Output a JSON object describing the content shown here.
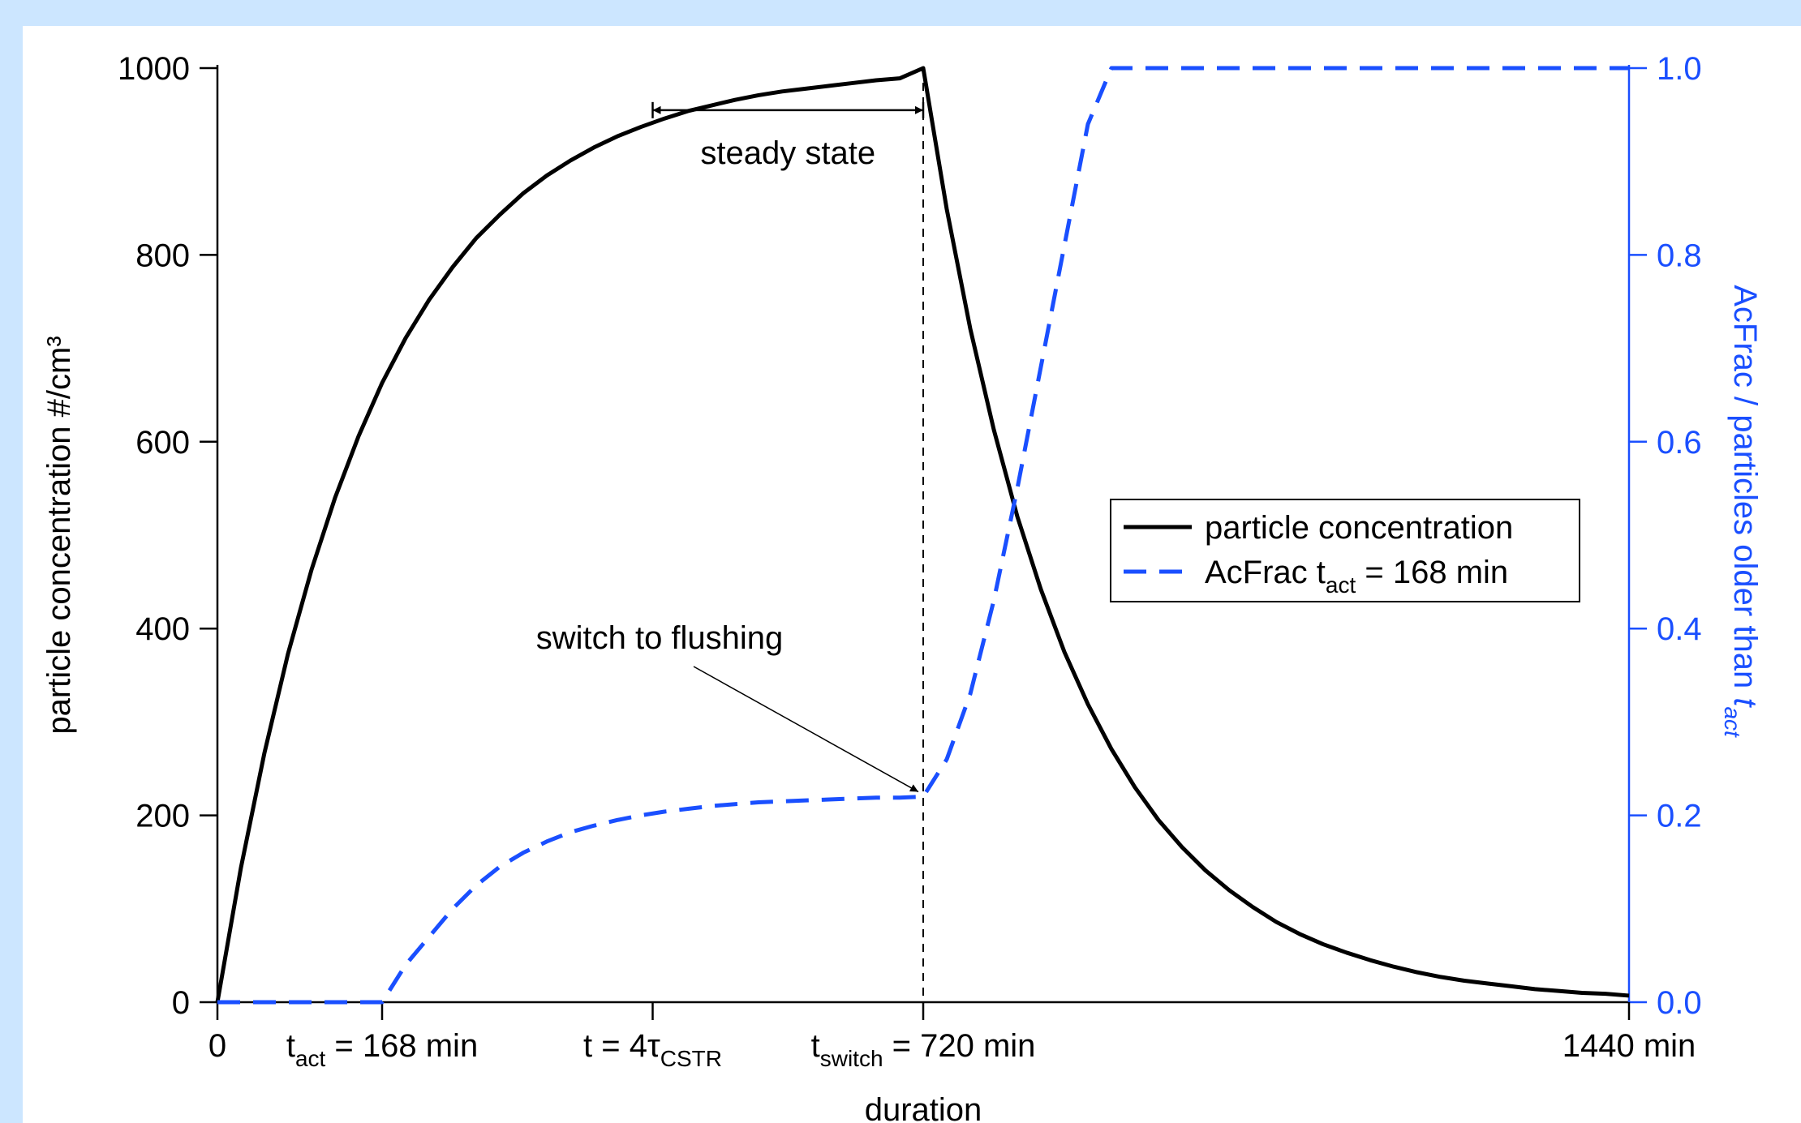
{
  "chart_data": {
    "type": "line",
    "x": [
      0,
      24,
      48,
      72,
      96,
      120,
      144,
      168,
      192,
      216,
      240,
      264,
      288,
      312,
      336,
      360,
      384,
      408,
      432,
      456,
      480,
      504,
      528,
      552,
      576,
      600,
      624,
      648,
      672,
      696,
      720,
      744,
      768,
      792,
      816,
      840,
      864,
      888,
      912,
      936,
      960,
      984,
      1008,
      1032,
      1056,
      1080,
      1104,
      1128,
      1152,
      1176,
      1200,
      1224,
      1248,
      1272,
      1296,
      1320,
      1344,
      1368,
      1392,
      1416,
      1440
    ],
    "series": [
      {
        "name": "particle concentration",
        "axis": "left",
        "color": "#000000",
        "style": "solid",
        "values": [
          0,
          144,
          267,
          373,
          463,
          540,
          606,
          663,
          711,
          752,
          787,
          818,
          843,
          866,
          885,
          901,
          915,
          927,
          937,
          946,
          954,
          960,
          966,
          971,
          975,
          978,
          981,
          984,
          987,
          989,
          1000,
          849,
          721,
          613,
          520,
          442,
          375,
          319,
          271,
          230,
          195,
          166,
          141,
          120,
          102,
          86,
          73,
          62,
          53,
          45,
          38,
          32,
          27,
          23,
          20,
          17,
          14,
          12,
          10,
          9,
          7
        ]
      },
      {
        "name": "AcFrac t_act = 168 min",
        "axis": "right",
        "color": "#1a4fff",
        "style": "dashed",
        "values": [
          0,
          0,
          0,
          0,
          0,
          0,
          0,
          0,
          0.04,
          0.07,
          0.1,
          0.125,
          0.145,
          0.16,
          0.172,
          0.182,
          0.189,
          0.195,
          0.2,
          0.204,
          0.207,
          0.21,
          0.212,
          0.214,
          0.215,
          0.216,
          0.217,
          0.218,
          0.219,
          0.219,
          0.22,
          0.26,
          0.33,
          0.43,
          0.55,
          0.68,
          0.81,
          0.94,
          1.0,
          1.0,
          1.0,
          1.0,
          1.0,
          1.0,
          1.0,
          1.0,
          1.0,
          1.0,
          1.0,
          1.0,
          1.0,
          1.0,
          1.0,
          1.0,
          1.0,
          1.0,
          1.0,
          1.0,
          1.0,
          1.0,
          1.0
        ]
      }
    ],
    "xlim": [
      0,
      1440
    ],
    "ylim": [
      0,
      1000
    ],
    "y2lim": [
      0,
      1.0
    ],
    "ylabel": "particle concentration #/cm³",
    "y2label_main": "AcFrac / particles older than ",
    "y2label_italic": "t",
    "y2label_sub": "act",
    "xlabel": "duration",
    "yticks": [
      0,
      200,
      400,
      600,
      800,
      1000
    ],
    "yticklabels": [
      "0",
      "200",
      "400",
      "600",
      "800",
      "1000"
    ],
    "y2ticks": [
      0,
      0.2,
      0.4,
      0.6,
      0.8,
      1.0
    ],
    "y2ticklabels": [
      "0.0",
      "0.2",
      "0.4",
      "0.6",
      "0.8",
      "1.0"
    ],
    "xticks": [
      {
        "x": 0,
        "label": "0"
      },
      {
        "x": 168,
        "label_pre": "t",
        "label_sub": "act",
        "label_post": " = 168 min"
      },
      {
        "x": 444,
        "label_pre": "t = 4τ",
        "label_sub": "CSTR",
        "label_post": ""
      },
      {
        "x": 720,
        "label_pre": "t",
        "label_sub": "switch",
        "label_post": " = 720 min"
      },
      {
        "x": 1440,
        "label": "1440 min"
      }
    ],
    "legend_position": "center-right",
    "legend": [
      {
        "label": "particle concentration",
        "style": "solid",
        "color": "#000000"
      },
      {
        "label_pre": "AcFrac t",
        "label_sub": "act",
        "label_post": " = 168 min",
        "style": "dashed",
        "color": "#1a4fff"
      }
    ],
    "annotations": {
      "steady_state": {
        "text": "steady state",
        "x_start": 444,
        "x_end": 720,
        "y": 955
      },
      "switch": {
        "text": "switch to flushing",
        "arrow_target_x": 720,
        "arrow_target_y2": 0.22
      },
      "vline_x": 720
    },
    "colors": {
      "left_axis": "#000000",
      "right_axis": "#1a4fff",
      "background": "#cce6ff"
    }
  }
}
